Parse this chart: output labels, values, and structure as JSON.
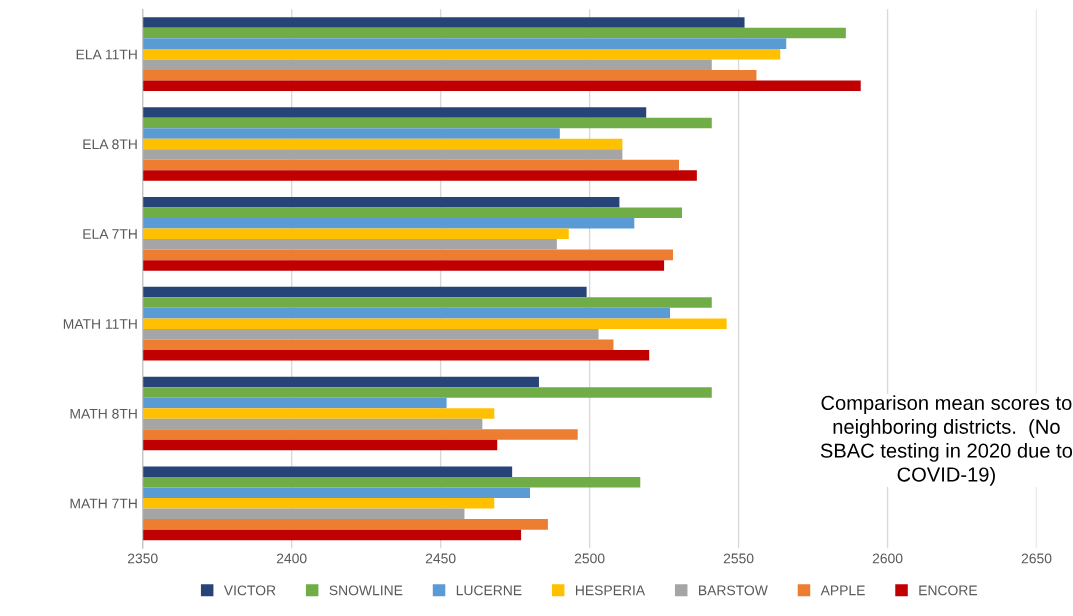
{
  "chart_data": {
    "type": "bar",
    "orientation": "horizontal",
    "categories": [
      "ELA 11TH",
      "ELA 8TH",
      "ELA 7TH",
      "MATH 11TH",
      "MATH 8TH",
      "MATH 7TH"
    ],
    "series": [
      {
        "name": "VICTOR",
        "color": "#264478",
        "values": [
          2552,
          2519,
          2510,
          2499,
          2483,
          2474
        ]
      },
      {
        "name": "SNOWLINE",
        "color": "#70ad47",
        "values": [
          2586,
          2541,
          2531,
          2541,
          2541,
          2517
        ]
      },
      {
        "name": "LUCERNE",
        "color": "#5b9bd5",
        "values": [
          2566,
          2490,
          2515,
          2527,
          2452,
          2480
        ]
      },
      {
        "name": "HESPERIA",
        "color": "#ffc000",
        "values": [
          2564,
          2511,
          2493,
          2546,
          2468,
          2468
        ]
      },
      {
        "name": "BARSTOW",
        "color": "#a5a5a5",
        "values": [
          2541,
          2511,
          2489,
          2503,
          2464,
          2458
        ]
      },
      {
        "name": "APPLE",
        "color": "#ed7d31",
        "values": [
          2556,
          2530,
          2528,
          2508,
          2496,
          2486
        ]
      },
      {
        "name": "ENCORE",
        "color": "#c00000",
        "values": [
          2591,
          2536,
          2525,
          2520,
          2469,
          2477
        ]
      }
    ],
    "xlim": [
      2350,
      2650
    ],
    "xticks": [
      2350,
      2400,
      2450,
      2500,
      2550,
      2600,
      2650
    ],
    "grid": "x",
    "legend": "bottom",
    "annotations": [
      "Comparison mean scores to\nneighboring districts.  (No\nSBAC testing in 2020 due to\nCOVID-19)"
    ]
  }
}
